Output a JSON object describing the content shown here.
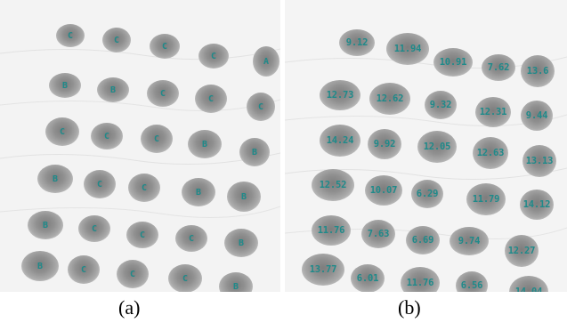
{
  "panel_a": {
    "caption": "(a)",
    "labels": [
      [
        "C",
        "C",
        "C",
        "C",
        "A"
      ],
      [
        "B",
        "B",
        "C",
        "C",
        "C"
      ],
      [
        "C",
        "C",
        "C",
        "B",
        "B"
      ],
      [
        "B",
        "C",
        "C",
        "B",
        "B"
      ],
      [
        "B",
        "C",
        "C",
        "C",
        "B"
      ],
      [
        "B",
        "C",
        "C",
        "C",
        "B"
      ]
    ]
  },
  "panel_b": {
    "caption": "(b)",
    "values": [
      [
        "9.12",
        "11.94",
        "10.91",
        "7.62",
        "13.6"
      ],
      [
        "12.73",
        "12.62",
        "9.32",
        "12.31",
        "9.44"
      ],
      [
        "14.24",
        "9.92",
        "12.05",
        "12.63",
        "13.13"
      ],
      [
        "12.52",
        "10.07",
        "6.29",
        "11.79",
        "14.12"
      ],
      [
        "11.76",
        "7.63",
        "6.69",
        "9.74",
        "12.27"
      ],
      [
        "13.77",
        "6.01",
        "11.76",
        "6.56",
        "14.04"
      ]
    ]
  },
  "colors": {
    "label": "#1f8a8a",
    "spot": "#8a8a8a"
  }
}
